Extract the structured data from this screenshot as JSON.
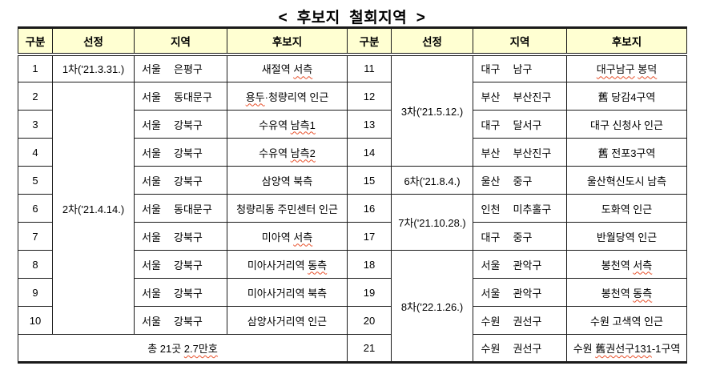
{
  "title": "<  후보지  철회지역  >",
  "colors": {
    "header_bg": "#FFFFD2",
    "squiggle": "#E8502A",
    "border": "#1a1a1a"
  },
  "table": {
    "headers": [
      "구분",
      "선정",
      "지역",
      "후보지"
    ],
    "left_rows": [
      {
        "no": "1",
        "selection": {
          "text": "1차('21.3.31.)",
          "rowspan": 1
        },
        "city": "서울",
        "district": "은평구",
        "site": "새절역 서측",
        "site_misspell": [
          "서측"
        ]
      },
      {
        "no": "2",
        "selection": {
          "text": "2차('21.4.14.)",
          "rowspan": 9
        },
        "city": "서울",
        "district": "동대문구",
        "site": "용두·청량리역 인근",
        "site_misspell": [
          "용두"
        ]
      },
      {
        "no": "3",
        "city": "서울",
        "district": "강북구",
        "site": "수유역 남측1",
        "site_misspell": [
          "남측1"
        ]
      },
      {
        "no": "4",
        "city": "서울",
        "district": "강북구",
        "site": "수유역 남측2",
        "site_misspell": [
          "남측2"
        ]
      },
      {
        "no": "5",
        "city": "서울",
        "district": "강북구",
        "site": "삼양역 북측",
        "site_misspell": []
      },
      {
        "no": "6",
        "city": "서울",
        "district": "동대문구",
        "site": "청량리동 주민센터 인근",
        "site_misspell": []
      },
      {
        "no": "7",
        "city": "서울",
        "district": "강북구",
        "site": "미아역 서측",
        "site_misspell": [
          "서측"
        ]
      },
      {
        "no": "8",
        "city": "서울",
        "district": "강북구",
        "site": "미아사거리역 동측",
        "site_misspell": [
          "동측"
        ]
      },
      {
        "no": "9",
        "city": "서울",
        "district": "강북구",
        "site": "미아사거리역 북측",
        "site_misspell": []
      },
      {
        "no": "10",
        "city": "서울",
        "district": "강북구",
        "site": "삼양사거리역 인근",
        "site_misspell": []
      }
    ],
    "left_footer": {
      "text": "총 21곳 2.7만호",
      "misspell": [
        "2.7만호"
      ]
    },
    "right_rows": [
      {
        "no": "11",
        "selection": {
          "text": "3차('21.5.12.)",
          "rowspan": 4
        },
        "city": "대구",
        "district": "남구",
        "site": "대구남구 봉덕",
        "site_misspell": [
          "대구남구",
          "봉덕"
        ]
      },
      {
        "no": "12",
        "city": "부산",
        "district": "부산진구",
        "site": "舊 당감4구역",
        "site_misspell": []
      },
      {
        "no": "13",
        "city": "대구",
        "district": "달서구",
        "site": "대구 신청사 인근",
        "site_misspell": []
      },
      {
        "no": "14",
        "city": "부산",
        "district": "부산진구",
        "site": "舊 전포3구역",
        "site_misspell": []
      },
      {
        "no": "15",
        "selection": {
          "text": "6차('21.8.4.)",
          "rowspan": 1
        },
        "city": "울산",
        "district": "중구",
        "site": "울산혁신도시 남측",
        "site_misspell": []
      },
      {
        "no": "16",
        "selection": {
          "text": "7차('21.10.28.)",
          "rowspan": 2
        },
        "city": "인천",
        "district": "미추홀구",
        "site": "도화역 인근",
        "site_misspell": []
      },
      {
        "no": "17",
        "city": "대구",
        "district": "중구",
        "site": "반월당역 인근",
        "site_misspell": []
      },
      {
        "no": "18",
        "selection": {
          "text": "8차('22.1.26.)",
          "rowspan": 4
        },
        "city": "서울",
        "district": "관악구",
        "site": "봉천역 서측",
        "site_misspell": [
          "서측"
        ]
      },
      {
        "no": "19",
        "city": "서울",
        "district": "관악구",
        "site": "봉천역 동측",
        "site_misspell": [
          "동측"
        ]
      },
      {
        "no": "20",
        "city": "수원",
        "district": "권선구",
        "site": "수원 고색역 인근",
        "site_misspell": []
      },
      {
        "no": "21",
        "city": "수원",
        "district": "권선구",
        "site": "수원 舊권선구131-1구역",
        "site_misspell": [
          "舊권선구131"
        ]
      }
    ]
  }
}
